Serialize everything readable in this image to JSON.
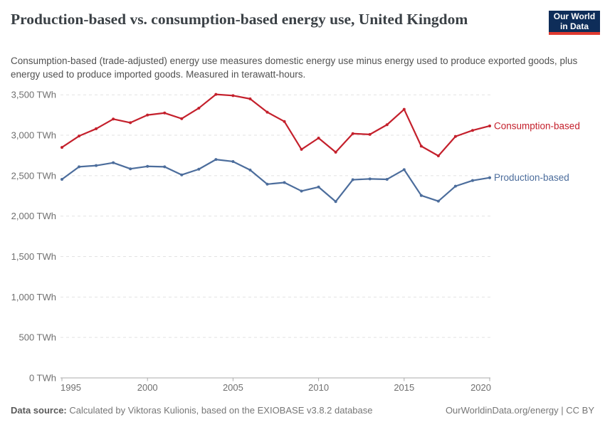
{
  "header": {
    "title": "Production-based vs. consumption-based energy use, United Kingdom",
    "subtitle": "Consumption-based (trade-adjusted) energy use measures domestic energy use minus energy used to produce exported goods, plus energy used to produce imported goods. Measured in terawatt-hours."
  },
  "logo": {
    "line1": "Our World",
    "line2": "in Data",
    "bg_color": "#0E2D59",
    "stripe_color": "#E03A30"
  },
  "chart_data": {
    "type": "line",
    "title": "Production-based vs. consumption-based energy use, United Kingdom",
    "unit": "TWh",
    "x": [
      1995,
      1996,
      1997,
      1998,
      1999,
      2000,
      2001,
      2002,
      2003,
      2004,
      2005,
      2006,
      2007,
      2008,
      2009,
      2010,
      2011,
      2012,
      2013,
      2014,
      2015,
      2016,
      2017,
      2018,
      2019,
      2020
    ],
    "series": [
      {
        "name": "Consumption-based",
        "color": "#C4202C",
        "values": [
          2850,
          2990,
          3080,
          3200,
          3155,
          3250,
          3275,
          3205,
          3335,
          3505,
          3490,
          3450,
          3285,
          3170,
          2825,
          2965,
          2790,
          3020,
          3010,
          3130,
          3320,
          2865,
          2745,
          2985,
          3060,
          3115
        ]
      },
      {
        "name": "Production-based",
        "color": "#4C6D9C",
        "values": [
          2455,
          2610,
          2625,
          2660,
          2585,
          2615,
          2610,
          2510,
          2580,
          2700,
          2675,
          2570,
          2395,
          2415,
          2310,
          2360,
          2180,
          2450,
          2460,
          2455,
          2575,
          2255,
          2185,
          2370,
          2440,
          2475
        ]
      }
    ],
    "xlabel": "",
    "ylabel": "",
    "ylim": [
      0,
      3500
    ],
    "yticks": [
      0,
      500,
      1000,
      1500,
      2000,
      2500,
      3000,
      3500
    ],
    "ytick_labels": [
      "0 TWh",
      "500 TWh",
      "1,000 TWh",
      "1,500 TWh",
      "2,000 TWh",
      "2,500 TWh",
      "3,000 TWh",
      "3,500 TWh"
    ],
    "xticks": [
      1995,
      2000,
      2005,
      2010,
      2015,
      2020
    ],
    "grid": "horizontal-dashed",
    "legend_position": "end-of-line-labels"
  },
  "footer": {
    "data_source_label": "Data source:",
    "data_source_text": " Calculated by Viktoras Kulionis, based on the EXIOBASE v3.8.2 database",
    "credit": "OurWorldinData.org/energy | CC BY"
  },
  "style_colors": {
    "gridline": "#E2E2E2",
    "axis": "#ABABAB",
    "tick_text": "#6F6F6F"
  }
}
